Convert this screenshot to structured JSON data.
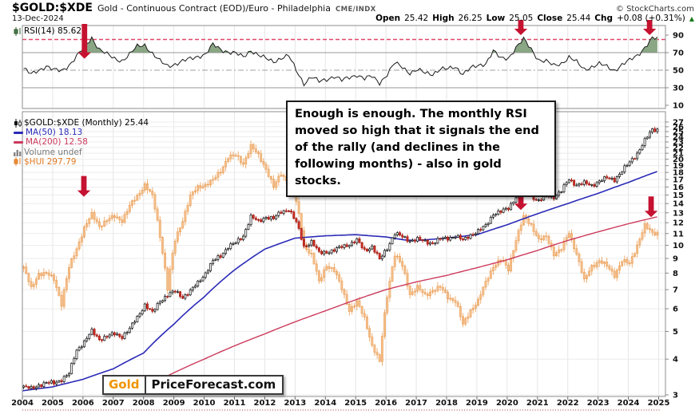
{
  "header": {
    "symbol": "$GOLD:$XDE",
    "description": "Gold - Continuous Contract (EOD)/Euro - Philadelphia",
    "exchange": "CME/INDX",
    "copyright": "© StockCharts.com",
    "date": "13-Dec-2024",
    "quote": {
      "open_label": "Open",
      "open": "25.42",
      "high_label": "High",
      "high": "26.25",
      "low_label": "Low",
      "low": "25.05",
      "close_label": "Close",
      "close": "25.44",
      "chg_label": "Chg",
      "chg": "+0.08 (+0.31%)",
      "chg_direction_icon": "▲"
    }
  },
  "rsi_legend": "RSI(14) 85.62",
  "main_legend": {
    "row1": "$GOLD:$XDE (Monthly) 25.44",
    "row2": "MA(50) 18.13",
    "row3": "MA(200) 12.58",
    "row4": "Volume undef",
    "row5": "$HUI 297.79"
  },
  "annotation": {
    "text": "Enough is enough. The monthly RSI moved so high that it signals the end of the rally (and declines in the following months) - also in gold stocks."
  },
  "logo": {
    "part1": "Gold",
    "part2": "PriceForecast.com"
  },
  "colors": {
    "arrow_red": "#c51230",
    "rsi_line": "#1a1a1a",
    "rsi_fill_green": "#7d9c78",
    "rsi_overbought_dashed": "#e04868",
    "ma50_blue": "#2a2ab8",
    "ma200_red": "#cc3a5c",
    "hui_orange": "#e8913f",
    "hui_fill": "#f6c08a",
    "gold_up_stroke": "#111111",
    "gold_down_fill": "#d43228",
    "grid": "#e6e6e6",
    "panel_border": "#8c8c8c",
    "axis_text": "#111111"
  },
  "chart_data": [
    {
      "type": "line",
      "name": "RSI(14)",
      "last_value": 85.62,
      "ylim": [
        0,
        100
      ],
      "axis_labels": [
        90,
        70,
        50,
        30,
        10
      ],
      "gridlines_solid": [
        70,
        30
      ],
      "gridline_dashdot": 50,
      "overbought_dashed_level": 85,
      "fill_above": 70,
      "x_start": 2004,
      "x_step_years": 0.25,
      "values": [
        52,
        45,
        50,
        55,
        50,
        49,
        56,
        66,
        76,
        87,
        74,
        68,
        63,
        61,
        68,
        77,
        79,
        69,
        60,
        55,
        57,
        60,
        63,
        66,
        68,
        79,
        74,
        71,
        69,
        65,
        73,
        67,
        63,
        60,
        64,
        66,
        50,
        35,
        42,
        37,
        40,
        43,
        38,
        42,
        45,
        40,
        43,
        36,
        45,
        58,
        54,
        47,
        50,
        47,
        46,
        51,
        51,
        54,
        46,
        52,
        55,
        58,
        72,
        63,
        64,
        76,
        85,
        74,
        62,
        60,
        55,
        58,
        65,
        59,
        51,
        54,
        57,
        54,
        50,
        56,
        61,
        67,
        76,
        86
      ],
      "arrows": [
        {
          "year": 2006.05,
          "tip_value": 74
        },
        {
          "year": 2020.45,
          "tip_value": 90
        },
        {
          "year": 2024.7,
          "tip_value": 90
        }
      ]
    },
    {
      "type": "candlestick",
      "x_axis_years": [
        2004,
        2005,
        2006,
        2007,
        2008,
        2009,
        2010,
        2011,
        2012,
        2013,
        2014,
        2015,
        2016,
        2017,
        2018,
        2019,
        2020,
        2021,
        2022,
        2023,
        2024,
        2025
      ],
      "y_scale": "log",
      "y_min": 3,
      "y_max": 27,
      "x_start": 2004,
      "x_step_years": 0.25,
      "gold": {
        "name": "$GOLD:$XDE",
        "timeframe": "Monthly",
        "last_close": 25.44,
        "quarterly_closes": [
          3.2,
          3.15,
          3.25,
          3.3,
          3.3,
          3.4,
          3.55,
          4.3,
          4.6,
          5.0,
          4.7,
          4.8,
          4.9,
          4.8,
          5.1,
          5.6,
          6.2,
          5.8,
          6.4,
          6.7,
          6.9,
          6.6,
          6.9,
          7.4,
          8.0,
          8.8,
          9.2,
          9.9,
          10.2,
          10.8,
          12.6,
          12.1,
          12.6,
          12.4,
          13.1,
          13.4,
          12.0,
          9.9,
          10.3,
          9.4,
          9.5,
          9.6,
          9.9,
          10.1,
          10.4,
          9.6,
          9.9,
          8.9,
          9.8,
          11.0,
          10.7,
          10.4,
          10.5,
          10.3,
          10.2,
          10.5,
          10.6,
          10.8,
          10.4,
          10.9,
          11.2,
          11.7,
          12.9,
          13.1,
          13.5,
          14.8,
          15.9,
          14.9,
          14.3,
          14.9,
          14.8,
          15.5,
          17.0,
          16.3,
          16.5,
          16.2,
          16.8,
          17.2,
          17.0,
          18.2,
          19.5,
          21.0,
          23.2,
          25.44
        ]
      },
      "hui_overlay": {
        "name": "$HUI",
        "last_close": 297.79,
        "scale_divisor": 26.95,
        "quarterly_closes": [
          225,
          190,
          215,
          215,
          205,
          168,
          225,
          262,
          310,
          345,
          315,
          330,
          340,
          330,
          370,
          400,
          440,
          400,
          290,
          190,
          280,
          330,
          400,
          430,
          440,
          455,
          490,
          550,
          555,
          520,
          600,
          555,
          500,
          430,
          480,
          445,
          380,
          270,
          250,
          200,
          230,
          220,
          190,
          160,
          170,
          150,
          120,
          105,
          180,
          250,
          228,
          182,
          192,
          180,
          188,
          192,
          178,
          172,
          142,
          160,
          172,
          200,
          228,
          240,
          222,
          282,
          338,
          318,
          282,
          288,
          252,
          262,
          298,
          252,
          202,
          228,
          238,
          228,
          212,
          238,
          232,
          270,
          315,
          298
        ]
      },
      "ma50": {
        "period": 50,
        "last_value": 18.13,
        "points": [
          [
            2004,
            3.1
          ],
          [
            2005,
            3.2
          ],
          [
            2006,
            3.4
          ],
          [
            2007,
            3.7
          ],
          [
            2008,
            4.2
          ],
          [
            2009,
            5.3
          ],
          [
            2010,
            6.6
          ],
          [
            2011,
            8.2
          ],
          [
            2012,
            9.7
          ],
          [
            2013,
            10.6
          ],
          [
            2014,
            10.8
          ],
          [
            2015,
            10.9
          ],
          [
            2016,
            10.7
          ],
          [
            2016.6,
            10.45
          ],
          [
            2017,
            10.4
          ],
          [
            2018,
            10.6
          ],
          [
            2019,
            10.9
          ],
          [
            2020,
            11.8
          ],
          [
            2021,
            12.9
          ],
          [
            2022,
            14.0
          ],
          [
            2023,
            15.2
          ],
          [
            2024,
            16.6
          ],
          [
            2024.95,
            18.13
          ]
        ]
      },
      "ma200": {
        "period": 200,
        "last_value": 12.58,
        "points": [
          [
            2008.8,
            3.5
          ],
          [
            2010,
            4.0
          ],
          [
            2011,
            4.45
          ],
          [
            2012,
            4.9
          ],
          [
            2013,
            5.4
          ],
          [
            2014,
            5.9
          ],
          [
            2015,
            6.45
          ],
          [
            2016,
            7.0
          ],
          [
            2017,
            7.45
          ],
          [
            2018,
            7.85
          ],
          [
            2019,
            8.35
          ],
          [
            2020,
            8.9
          ],
          [
            2021,
            9.6
          ],
          [
            2022,
            10.4
          ],
          [
            2023,
            11.15
          ],
          [
            2024,
            11.9
          ],
          [
            2024.95,
            12.58
          ]
        ]
      },
      "volume": "undef",
      "arrows": [
        {
          "year": 2006.03,
          "tip_price": 14.8
        },
        {
          "year": 2020.45,
          "tip_price": 13.3
        },
        {
          "year": 2024.75,
          "tip_price": 12.55
        }
      ]
    }
  ]
}
